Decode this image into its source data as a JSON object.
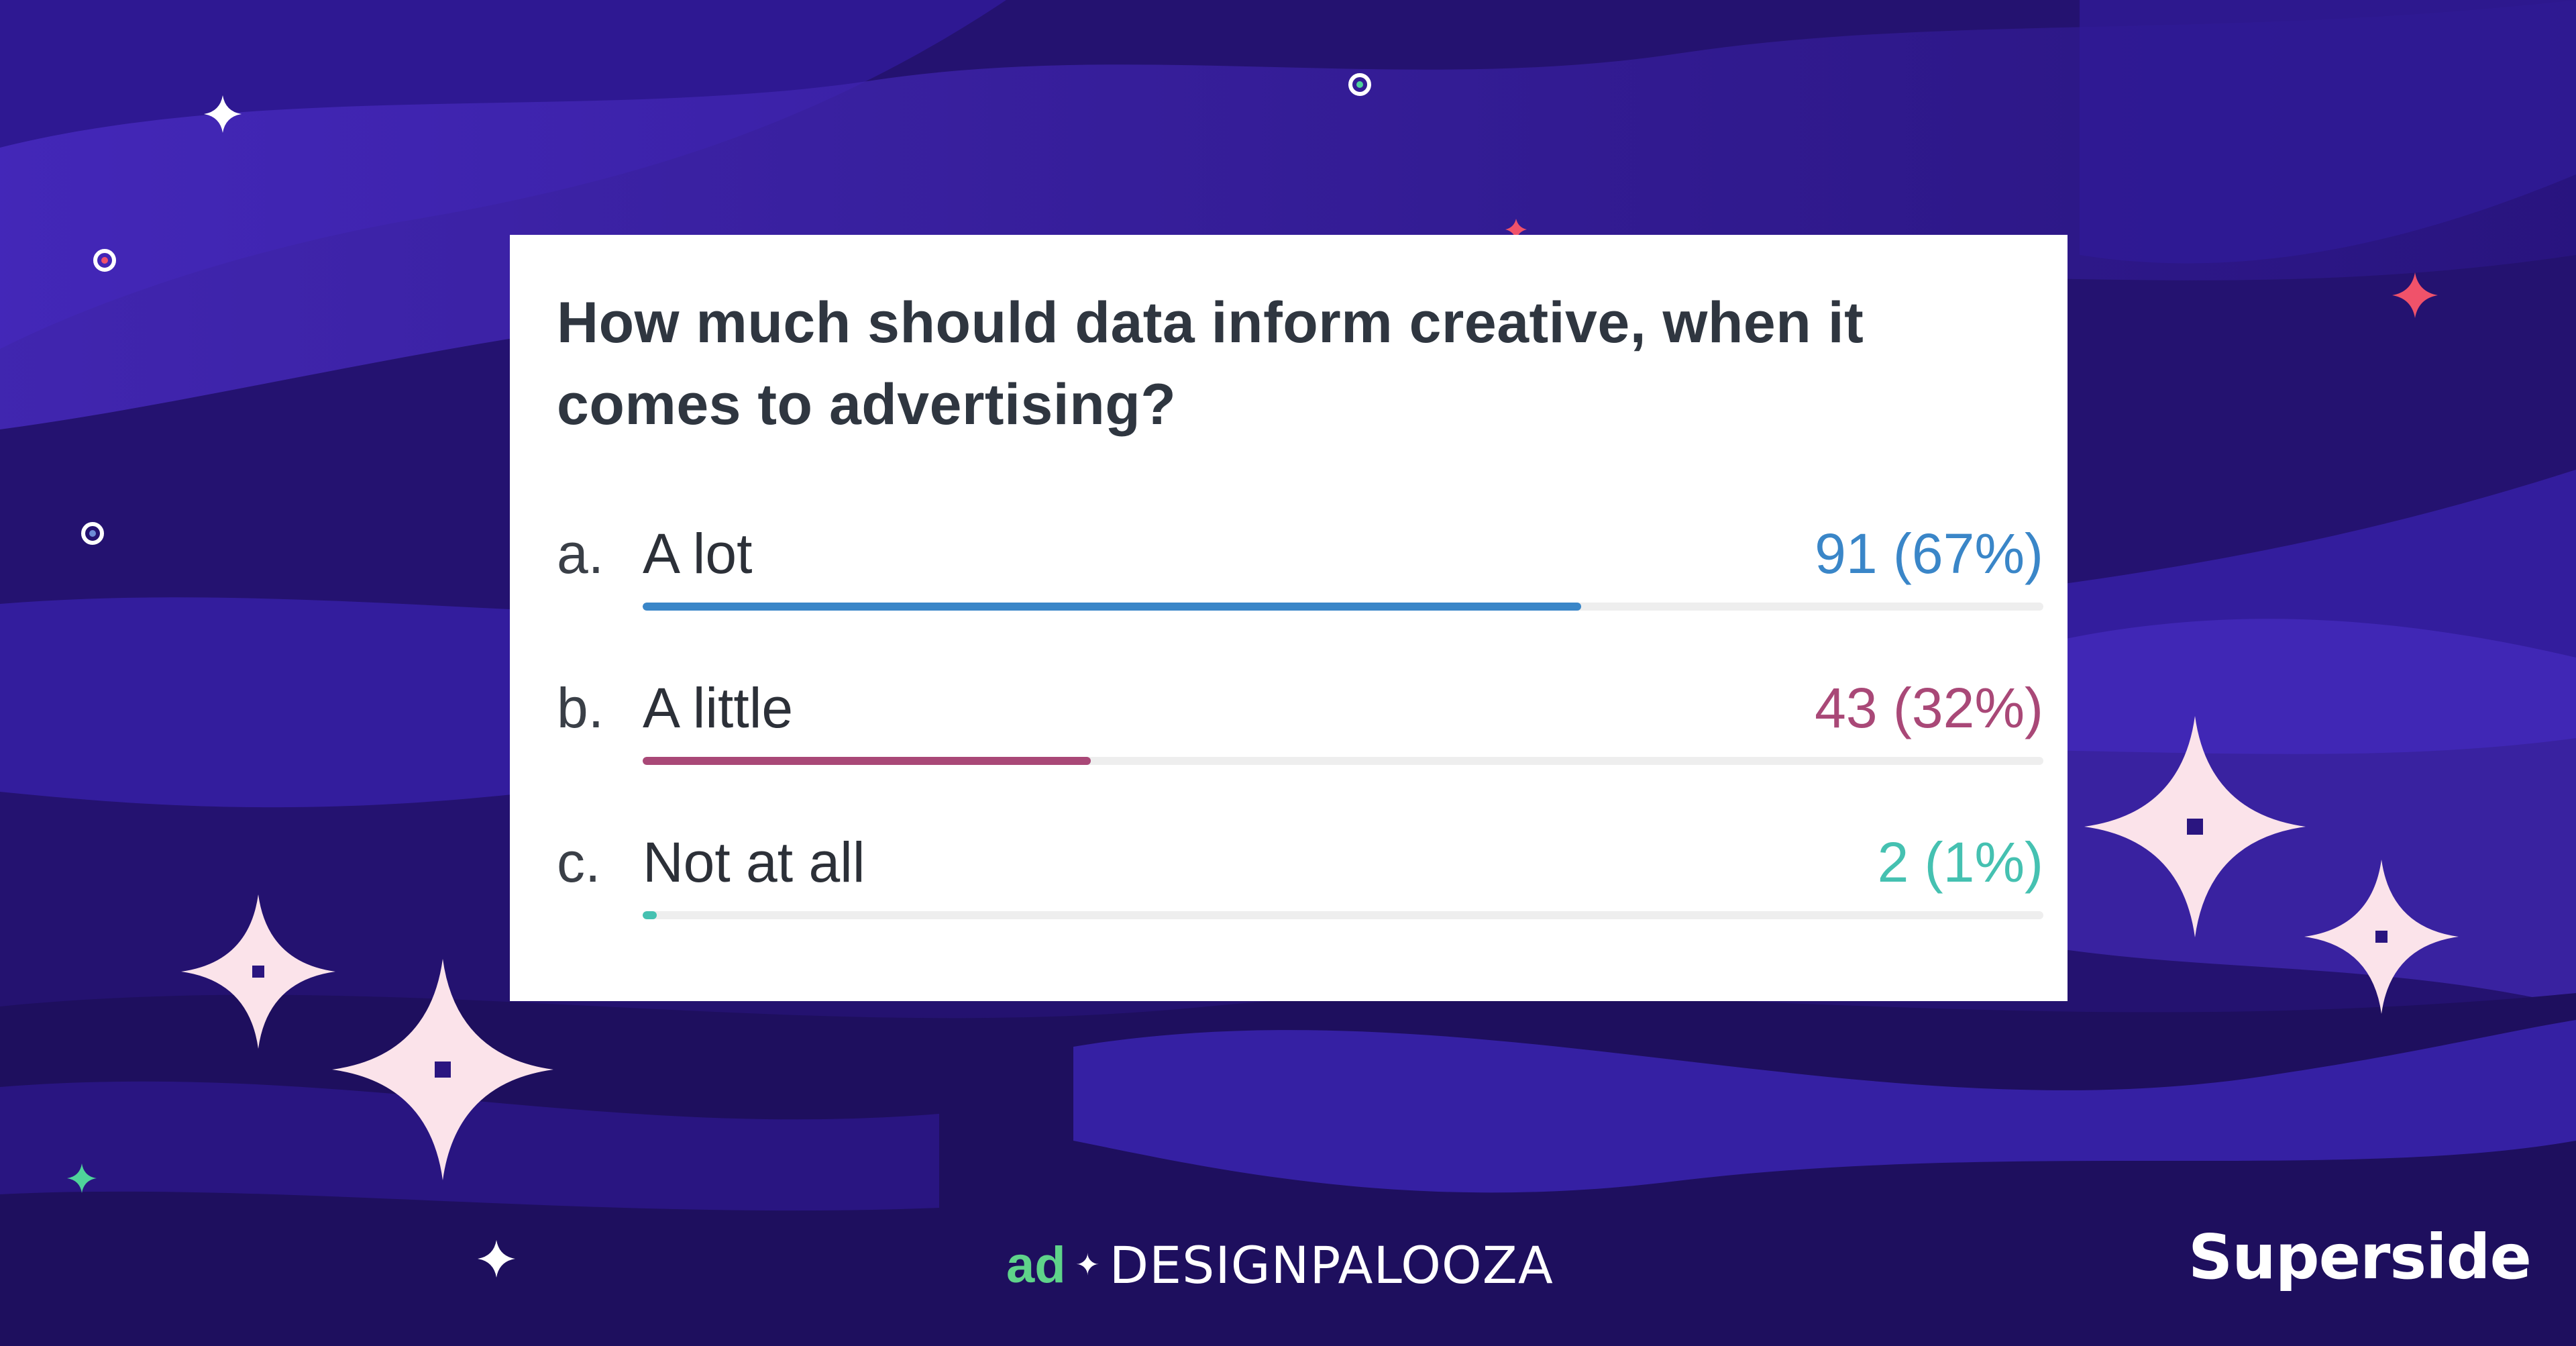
{
  "poll": {
    "question": "How much should data inform creative, when it comes to advertising?",
    "options": [
      {
        "letter": "a.",
        "label": "A lot",
        "result": "91 (67%)",
        "votes": 91,
        "percent": 67,
        "color": "#3a86c8"
      },
      {
        "letter": "b.",
        "label": "A little",
        "result": "43 (32%)",
        "votes": 43,
        "percent": 32,
        "color": "#a94877"
      },
      {
        "letter": "c.",
        "label": "Not at all",
        "result": "2 (1%)",
        "votes": 2,
        "percent": 1,
        "color": "#45c1b1"
      }
    ]
  },
  "footer": {
    "designpalooza_prefix": "ad",
    "designpalooza_wordmark": "DESIGNPALOOZA",
    "superside": "Superside"
  },
  "colors": {
    "background": "#23126b",
    "accent_green": "#5fd38a",
    "accent_red": "#f0526a"
  }
}
